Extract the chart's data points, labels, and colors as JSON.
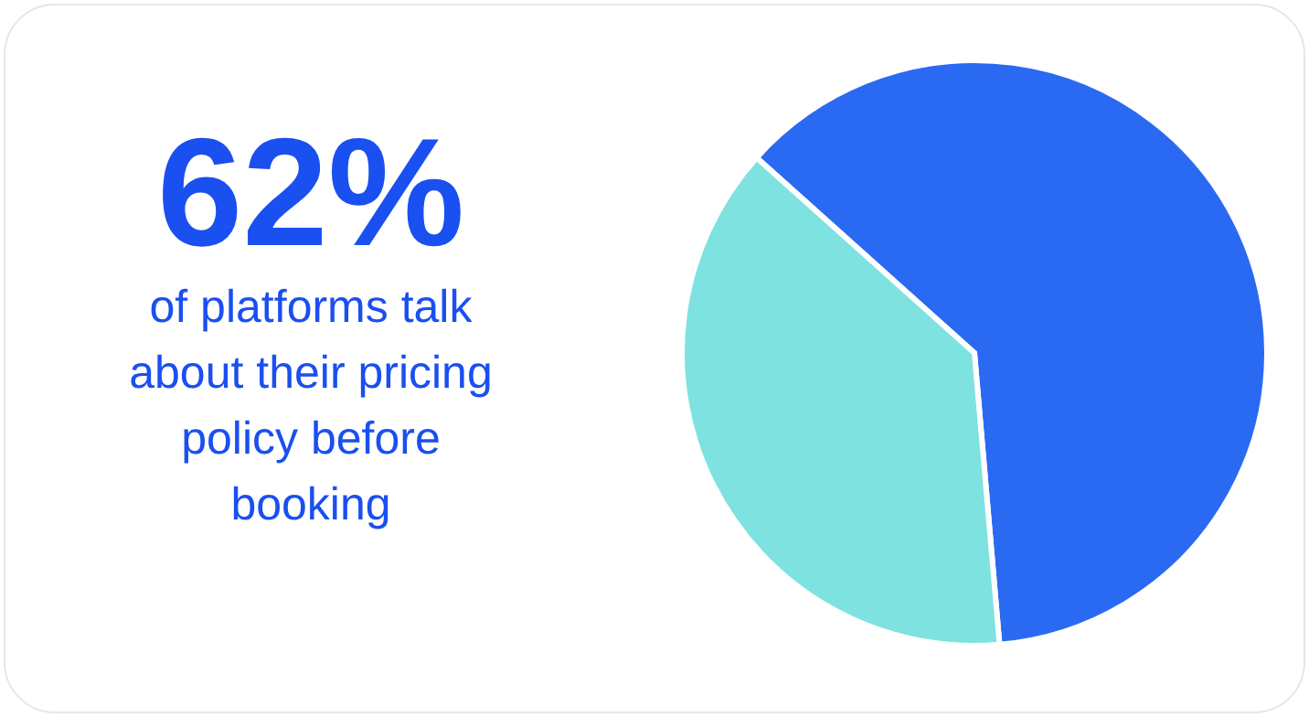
{
  "chart_data": {
    "type": "pie",
    "title": "62%",
    "subtitle": "of platforms talk about their pricing policy before booking",
    "categories": [
      null,
      null
    ],
    "values": [
      62,
      38
    ],
    "colors": [
      "#2a6af2",
      "#7de2e0"
    ]
  }
}
